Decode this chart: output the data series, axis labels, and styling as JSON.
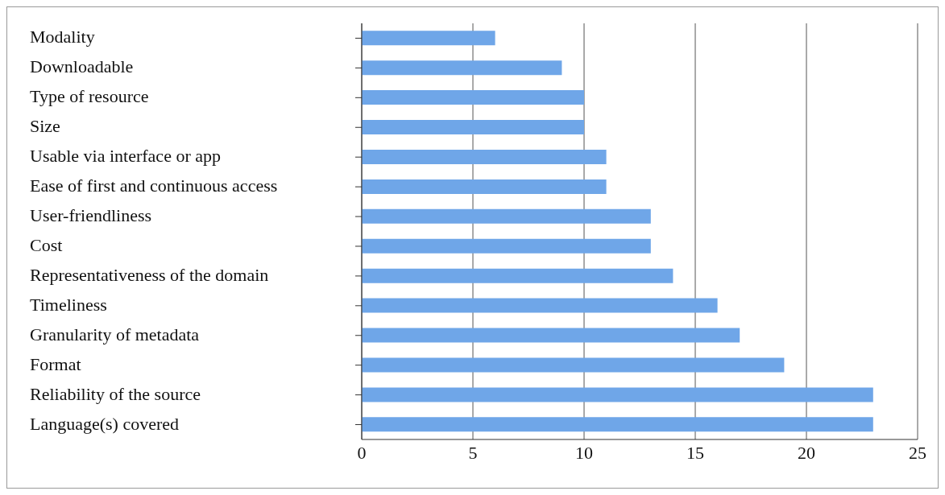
{
  "chart_data": {
    "type": "bar",
    "orientation": "horizontal",
    "categories": [
      "Modality",
      "Downloadable",
      "Type of resource",
      "Size",
      "Usable via interface or app",
      "Ease of first and continuous access",
      "User-friendliness",
      "Cost",
      "Representativeness of the domain",
      "Timeliness",
      "Granularity of metadata",
      "Format",
      "Reliability of the source",
      "Language(s) covered"
    ],
    "values": [
      6,
      9,
      10,
      10,
      11,
      11,
      13,
      13,
      14,
      16,
      17,
      19,
      23,
      23
    ],
    "color": "#6fa6e8",
    "xlim": [
      0,
      25
    ],
    "xticks": [
      0,
      5,
      10,
      15,
      20,
      25
    ],
    "grid": "x",
    "legend": false
  }
}
